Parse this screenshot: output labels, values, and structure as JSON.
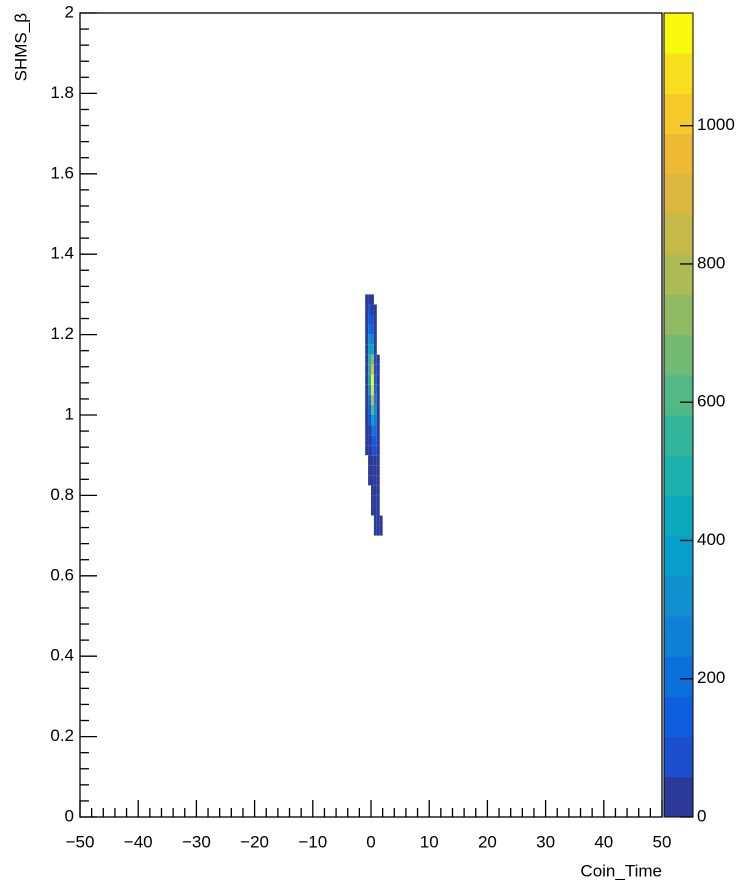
{
  "chart_data": {
    "type": "hist2d",
    "x_label": "Coin_Time",
    "y_label": "SHMS_β",
    "xlim": [
      -50,
      50
    ],
    "xticks": [
      {
        "value": -50,
        "label": "−50"
      },
      {
        "value": -40,
        "label": "−40"
      },
      {
        "value": -30,
        "label": "−30"
      },
      {
        "value": -20,
        "label": "−20"
      },
      {
        "value": -10,
        "label": "−10"
      },
      0,
      10,
      20,
      30,
      40,
      50
    ],
    "ylim": [
      0,
      2
    ],
    "yticks": [
      0,
      0.2,
      0.4,
      0.6,
      0.8,
      1,
      1.2,
      1.4,
      1.6,
      1.8,
      2
    ],
    "zlim": [
      0,
      1163
    ],
    "zticks": [
      0,
      200,
      400,
      600,
      800,
      1000
    ],
    "palette": [
      "#2c3b9a",
      "#1b4fce",
      "#0e5fe0",
      "#0b6fdc",
      "#0f81d4",
      "#118fcf",
      "#079fc9",
      "#0ca8bd",
      "#1eb0ad",
      "#33b59c",
      "#52b986",
      "#72bb74",
      "#90bb64",
      "#acbb56",
      "#c5b94a",
      "#dbb73f",
      "#eeb935",
      "#f7c92b",
      "#f7df1e",
      "#f9f90e"
    ],
    "xbins": [
      -1.5,
      -1,
      -0.5,
      0,
      0.5,
      1,
      1.5,
      2
    ],
    "ybins": [
      0.7,
      0.725,
      0.75,
      0.775,
      0.8,
      0.825,
      0.85,
      0.875,
      0.9,
      0.925,
      0.95,
      0.975,
      1,
      1.025,
      1.05,
      1.075,
      1.1,
      1.125,
      1.15,
      1.175,
      1.2,
      1.225,
      1.25,
      1.275,
      1.3
    ],
    "z": [
      [
        null,
        null,
        null,
        null,
        5,
        12,
        4
      ],
      [
        null,
        null,
        null,
        null,
        10,
        20,
        3
      ],
      [
        null,
        null,
        null,
        3,
        18,
        22,
        null
      ],
      [
        null,
        null,
        null,
        6,
        25,
        20,
        null
      ],
      [
        null,
        null,
        null,
        10,
        35,
        18,
        null
      ],
      [
        null,
        null,
        2,
        15,
        40,
        15,
        null
      ],
      [
        null,
        null,
        4,
        25,
        50,
        12,
        null
      ],
      [
        null,
        null,
        6,
        40,
        55,
        10,
        null
      ],
      [
        null,
        2,
        10,
        60,
        70,
        12,
        null
      ],
      [
        null,
        3,
        18,
        110,
        120,
        15,
        null
      ],
      [
        null,
        4,
        30,
        220,
        180,
        15,
        null
      ],
      [
        null,
        5,
        60,
        380,
        260,
        12,
        null
      ],
      [
        null,
        6,
        120,
        600,
        300,
        10,
        null
      ],
      [
        null,
        8,
        200,
        850,
        280,
        8,
        null
      ],
      [
        null,
        10,
        300,
        1100,
        220,
        6,
        null
      ],
      [
        null,
        12,
        420,
        1150,
        160,
        4,
        null
      ],
      [
        null,
        12,
        500,
        950,
        110,
        3,
        null
      ],
      [
        null,
        14,
        480,
        700,
        70,
        2,
        null
      ],
      [
        null,
        14,
        400,
        450,
        40,
        null,
        null
      ],
      [
        null,
        12,
        320,
        260,
        25,
        null,
        null
      ],
      [
        null,
        10,
        220,
        140,
        12,
        null,
        null
      ],
      [
        null,
        8,
        140,
        70,
        6,
        null,
        null
      ],
      [
        null,
        6,
        80,
        35,
        3,
        null,
        null
      ],
      [
        null,
        4,
        40,
        15,
        null,
        null,
        null
      ]
    ]
  }
}
